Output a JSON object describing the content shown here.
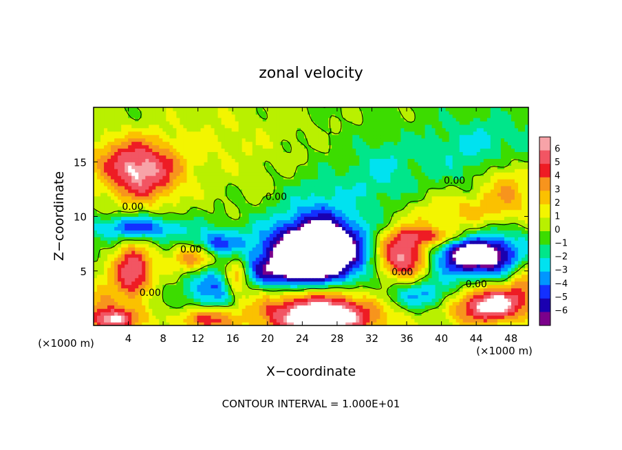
{
  "chart_data": {
    "type": "heatmap",
    "title": "zonal velocity",
    "xlabel": "X−coordinate",
    "ylabel": "Z−coordinate",
    "x_unit_left": "(×1000 m)",
    "x_unit_right": "(×1000 m)",
    "xlim": [
      0,
      50
    ],
    "ylim": [
      0,
      20
    ],
    "x_ticks": [
      4,
      8,
      12,
      16,
      20,
      24,
      28,
      32,
      36,
      40,
      44,
      48
    ],
    "y_ticks": [
      5,
      10,
      15
    ],
    "footer": "CONTOUR INTERVAL = 1.000E+01",
    "contour_label": "0.00",
    "contour_label_points": [
      {
        "x": 4.5,
        "z": 10.6
      },
      {
        "x": 11.2,
        "z": 6.7
      },
      {
        "x": 21.0,
        "z": 11.5
      },
      {
        "x": 6.5,
        "z": 2.7
      },
      {
        "x": 35.5,
        "z": 4.6
      },
      {
        "x": 41.5,
        "z": 13.0
      },
      {
        "x": 44.0,
        "z": 3.5
      }
    ],
    "colorbar": {
      "ticks": [
        "6",
        "5",
        "4",
        "3",
        "2",
        "1",
        "0",
        "−1",
        "−2",
        "−3",
        "−4",
        "−5",
        "−6"
      ],
      "colors": [
        "#f7a3a8",
        "#f25563",
        "#ee1c24",
        "#f7941d",
        "#fbc100",
        "#f3f500",
        "#b9f000",
        "#3cdc00",
        "#00e68a",
        "#00e2f0",
        "#0096ff",
        "#1330ff",
        "#1a00b0",
        "#7b008b"
      ]
    },
    "features": [
      {
        "x": 5.5,
        "z": 13.7,
        "u": 5.5,
        "sx": 3.2,
        "sz": 1.8
      },
      {
        "x": 4.0,
        "z": 15.8,
        "u": 2.5,
        "sx": 3.5,
        "sz": 1.5
      },
      {
        "x": 47.5,
        "z": 13.0,
        "u": 3.5,
        "sx": 2.5,
        "sz": 2.0
      },
      {
        "x": 42.0,
        "z": 10.3,
        "u": 2.5,
        "sx": 4.0,
        "sz": 1.3
      },
      {
        "x": 15.0,
        "z": 17.0,
        "u": 1.0,
        "sx": 6.0,
        "sz": 3.0
      },
      {
        "x": 5.0,
        "z": 9.0,
        "u": -4.5,
        "sx": 4.0,
        "sz": 0.8
      },
      {
        "x": 14.0,
        "z": 7.6,
        "u": -4.0,
        "sx": 2.0,
        "sz": 0.8
      },
      {
        "x": 25.5,
        "z": 6.8,
        "u": -9.0,
        "sx": 4.8,
        "sz": 1.9
      },
      {
        "x": 26.0,
        "z": 9.5,
        "u": -3.0,
        "sx": 3.0,
        "sz": 2.8
      },
      {
        "x": 44.0,
        "z": 6.5,
        "u": -8.5,
        "sx": 3.8,
        "sz": 1.5
      },
      {
        "x": 38.0,
        "z": 2.8,
        "u": -4.0,
        "sx": 3.5,
        "sz": 1.0
      },
      {
        "x": 22.0,
        "z": 4.8,
        "u": -3.5,
        "sx": 4.5,
        "sz": 1.0
      },
      {
        "x": 13.5,
        "z": 3.2,
        "u": -4.0,
        "sx": 2.0,
        "sz": 1.3
      },
      {
        "x": 45.0,
        "z": 16.0,
        "u": -2.5,
        "sx": 5.0,
        "sz": 2.5
      },
      {
        "x": 33.0,
        "z": 14.0,
        "u": -2.0,
        "sx": 3.0,
        "sz": 2.5
      },
      {
        "x": 35.5,
        "z": 6.5,
        "u": 8.0,
        "sx": 2.4,
        "sz": 1.6
      },
      {
        "x": 26.0,
        "z": 1.0,
        "u": 8.5,
        "sx": 5.0,
        "sz": 1.6
      },
      {
        "x": 45.5,
        "z": 2.0,
        "u": 7.5,
        "sx": 3.5,
        "sz": 1.3
      },
      {
        "x": 4.5,
        "z": 5.0,
        "u": 6.5,
        "sx": 1.6,
        "sz": 1.6
      },
      {
        "x": 16.5,
        "z": 4.6,
        "u": 5.0,
        "sx": 1.0,
        "sz": 1.2
      },
      {
        "x": 11.5,
        "z": 6.2,
        "u": 4.0,
        "sx": 1.8,
        "sz": 0.9
      },
      {
        "x": 39.5,
        "z": 8.2,
        "u": 4.0,
        "sx": 3.0,
        "sz": 0.6
      },
      {
        "x": 13.0,
        "z": 0.6,
        "u": 5.0,
        "sx": 2.0,
        "sz": 0.8
      },
      {
        "x": 2.5,
        "z": 0.6,
        "u": 6.0,
        "sx": 2.5,
        "sz": 0.8
      },
      {
        "x": 1.0,
        "z": 2.5,
        "u": 3.0,
        "sx": 1.5,
        "sz": 1.0
      },
      {
        "x": 49.5,
        "z": 4.5,
        "u": 3.0,
        "sx": 1.2,
        "sz": 1.2
      }
    ]
  }
}
